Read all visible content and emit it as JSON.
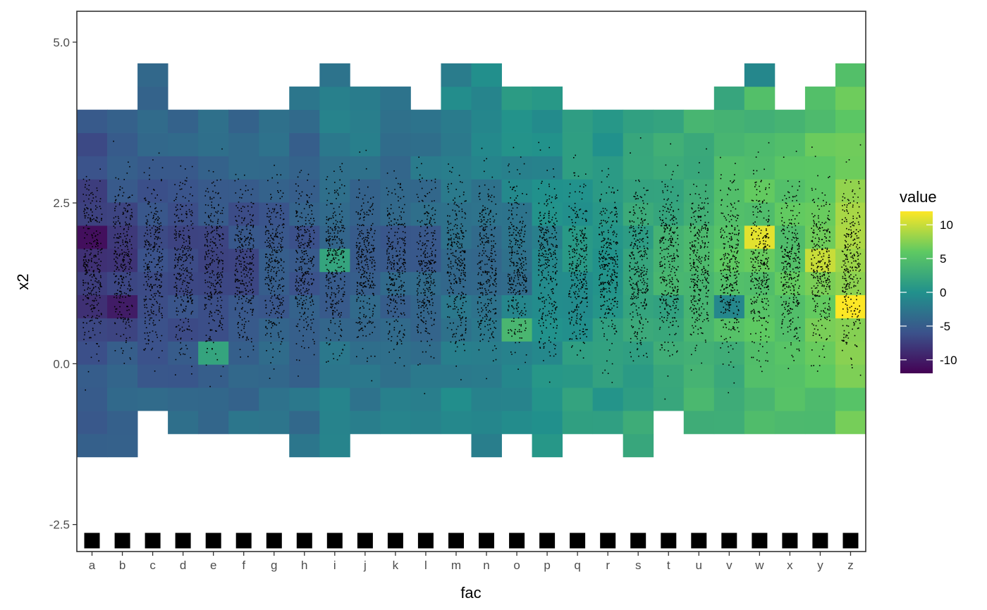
{
  "chart_data": {
    "type": "heatmap",
    "title": "",
    "xlabel": "fac",
    "ylabel": "x2",
    "categories": [
      "a",
      "b",
      "c",
      "d",
      "e",
      "f",
      "g",
      "h",
      "i",
      "j",
      "k",
      "l",
      "m",
      "n",
      "o",
      "p",
      "q",
      "r",
      "s",
      "t",
      "u",
      "v",
      "w",
      "x",
      "y",
      "z"
    ],
    "y_ticks": [
      5.0,
      2.5,
      0.0,
      -2.5
    ],
    "y_tick_labels": [
      "5.0",
      "2.5",
      "0.0",
      "-2.5"
    ],
    "ylim": [
      -2.92,
      5.48
    ],
    "y_bin_width": 0.36,
    "y_bin_start": -1.45,
    "y_bin_count": 17,
    "row_extent": [
      [
        -1.45,
        3.95
      ],
      [
        -1.45,
        3.95
      ],
      [
        -0.73,
        4.67
      ],
      [
        -1.09,
        3.95
      ],
      [
        -1.09,
        3.95
      ],
      [
        -1.09,
        3.95
      ],
      [
        -1.09,
        3.95
      ],
      [
        -1.45,
        4.31
      ],
      [
        -1.45,
        4.67
      ],
      [
        -1.09,
        4.31
      ],
      [
        -1.09,
        4.31
      ],
      [
        -1.09,
        3.95
      ],
      [
        -1.09,
        4.67
      ],
      [
        -1.45,
        4.67
      ],
      [
        -1.09,
        4.31
      ],
      [
        -1.45,
        4.31
      ],
      [
        -1.09,
        3.95
      ],
      [
        -1.09,
        3.95
      ],
      [
        -1.45,
        4.31
      ],
      [
        -0.73,
        3.95
      ],
      [
        -1.09,
        3.95
      ],
      [
        -1.09,
        4.31
      ],
      [
        -1.09,
        4.67
      ],
      [
        -1.09,
        3.95
      ],
      [
        -1.09,
        4.31
      ],
      [
        -1.09,
        4.67
      ]
    ],
    "column_profiles": [
      [
        -5,
        -9
      ],
      [
        -4,
        -8
      ],
      [
        -4,
        -7
      ],
      [
        -4,
        -7
      ],
      [
        -3,
        -7
      ],
      [
        -3,
        -7
      ],
      [
        -3,
        -6
      ],
      [
        -3,
        -6
      ],
      [
        -2,
        -5
      ],
      [
        -2,
        -5
      ],
      [
        -2,
        -5
      ],
      [
        -2,
        -5
      ],
      [
        -1,
        -4
      ],
      [
        -1,
        -4
      ],
      [
        0,
        -3
      ],
      [
        0,
        -1
      ],
      [
        1,
        0
      ],
      [
        1,
        1
      ],
      [
        2,
        2
      ],
      [
        2,
        3
      ],
      [
        3,
        4
      ],
      [
        3,
        5
      ],
      [
        4,
        6
      ],
      [
        4,
        6
      ],
      [
        5,
        8
      ],
      [
        6,
        9
      ]
    ],
    "cell_overrides": [
      {
        "fac": "a",
        "y": 1.97,
        "value": -11
      },
      {
        "fac": "b",
        "y": 0.89,
        "value": -10
      },
      {
        "fac": "i",
        "y": 1.61,
        "value": 2
      },
      {
        "fac": "o",
        "y": 0.53,
        "value": 4
      },
      {
        "fac": "s",
        "y": 4.13,
        "value": null
      },
      {
        "fac": "w",
        "y": 1.97,
        "value": 11
      },
      {
        "fac": "z",
        "y": 0.89,
        "value": 12
      },
      {
        "fac": "y",
        "y": 1.61,
        "value": 10
      },
      {
        "fac": "w",
        "y": 4.49,
        "value": -1
      },
      {
        "fac": "e",
        "y": 0.17,
        "value": 2
      },
      {
        "fac": "v",
        "y": 0.89,
        "value": -1
      }
    ],
    "points_per_column": 300,
    "rug_y": -2.75,
    "legend": {
      "title": "value",
      "placement": "right",
      "range": [
        -12,
        12
      ],
      "ticks": [
        10,
        5,
        0,
        -5,
        -10
      ],
      "tick_labels": [
        "10",
        "5",
        "0",
        "-5",
        "-10"
      ]
    },
    "palette": [
      "#440154",
      "#3b528b",
      "#21918c",
      "#5ec962",
      "#fde725"
    ],
    "grid": false
  }
}
